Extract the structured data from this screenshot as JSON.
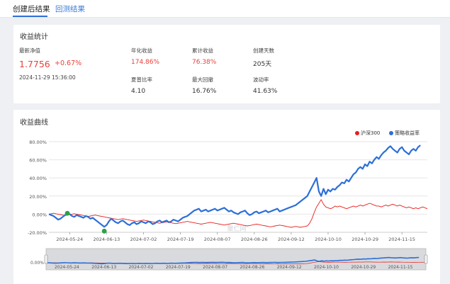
{
  "tabs": [
    {
      "label": "创建后结果",
      "active": true
    },
    {
      "label": "回测结果",
      "active": false
    }
  ],
  "stats": {
    "title": "收益统计",
    "nav_label": "最新净值",
    "nav_value": "1.7756",
    "nav_change": "+0.67%",
    "nav_time": "2024-11-29 15:36:00",
    "items": [
      {
        "label": "年化收益",
        "value": "174.86%",
        "color": "red"
      },
      {
        "label": "累计收益",
        "value": "76.38%",
        "color": "red"
      },
      {
        "label": "创建天数",
        "value": "205天",
        "color": "normal"
      },
      {
        "label": "夏普比率",
        "value": "4.10",
        "color": "normal"
      },
      {
        "label": "最大回撤",
        "value": "16.76%",
        "color": "normal"
      },
      {
        "label": "波动率",
        "value": "41.63%",
        "color": "normal"
      }
    ]
  },
  "chart_section_title": "收益曲线",
  "colors": {
    "benchmark": "#e8201c",
    "strategy": "#2c6fd8",
    "accent": "#2f6fd6",
    "marker": "#2ea043"
  },
  "chart_data": {
    "type": "line",
    "ylim": [
      -20,
      80
    ],
    "ytick_labels": [
      "80.00%",
      "60.00%",
      "40.00%",
      "20.00%",
      "0.00%",
      "-20.00%"
    ],
    "ytick_values": [
      80,
      60,
      40,
      20,
      0,
      -20
    ],
    "xtick_labels": [
      "2024-05-24",
      "2024-06-13",
      "2024-07-02",
      "2024-07-19",
      "2024-08-07",
      "2024-08-26",
      "2024-09-12",
      "2024-10-10",
      "2024-10-29",
      "2024-11-15"
    ],
    "xtick_index": [
      9,
      25,
      41,
      57,
      73,
      89,
      105,
      121,
      137,
      153
    ],
    "legend_position": "top-right",
    "series": [
      {
        "name": "沪深300",
        "color": "#e8201c",
        "values": [
          0,
          0.5,
          1,
          0.5,
          0,
          -0.5,
          -1,
          -1.5,
          -1,
          -0.5,
          0,
          0.5,
          0,
          -0.5,
          -1,
          -1.5,
          -2,
          -2.5,
          -2,
          -1.5,
          -1,
          -1.5,
          -2,
          -2.5,
          -3,
          -3.5,
          -4,
          -4.5,
          -5,
          -5.5,
          -6,
          -5.5,
          -5,
          -5.5,
          -6,
          -6.5,
          -7,
          -7.5,
          -8,
          -7.5,
          -7,
          -6.5,
          -7,
          -7.5,
          -8,
          -8.5,
          -9,
          -9.5,
          -10,
          -9.5,
          -9,
          -8.5,
          -9,
          -9.5,
          -10,
          -10.5,
          -10,
          -9.5,
          -9,
          -8.5,
          -8,
          -8.5,
          -9,
          -9.5,
          -10,
          -10.5,
          -11,
          -10.5,
          -10,
          -9.5,
          -9,
          -9.5,
          -10,
          -10.5,
          -11,
          -11.5,
          -12,
          -11.5,
          -11,
          -10.5,
          -10,
          -10.5,
          -11,
          -11.5,
          -12,
          -12.5,
          -13,
          -12.5,
          -12,
          -11.5,
          -11,
          -11.5,
          -12,
          -12.5,
          -13,
          -13.5,
          -14,
          -13.5,
          -13,
          -12.5,
          -12,
          -12.5,
          -13,
          -13.5,
          -14,
          -14.5,
          -14,
          -13.5,
          -14,
          -14.5,
          -14,
          -13.5,
          -13,
          -10,
          -5,
          2,
          8,
          12,
          16,
          11,
          8,
          7,
          6,
          7,
          9,
          8,
          9,
          8,
          7,
          6,
          7,
          8,
          9,
          8,
          9,
          10,
          9,
          10,
          11,
          12,
          11,
          10,
          9,
          9,
          8,
          9,
          10,
          9,
          10,
          11,
          10,
          9,
          10,
          9,
          8,
          7,
          8,
          7,
          6,
          7,
          6,
          7,
          8,
          7,
          6
        ],
        "y_unit": "%"
      },
      {
        "name": "策略收益率",
        "color": "#2c6fd8",
        "values": [
          0,
          -1,
          -2,
          -4,
          -6,
          -5,
          -3,
          -1,
          1,
          0,
          -2,
          -3,
          -1,
          -2,
          -3,
          -4,
          -2,
          -3,
          -5,
          -4,
          -6,
          -8,
          -10,
          -12,
          -14,
          -12,
          -8,
          -5,
          -7,
          -9,
          -10,
          -8,
          -7,
          -9,
          -11,
          -12,
          -10,
          -9,
          -11,
          -10,
          -8,
          -9,
          -10,
          -8,
          -9,
          -11,
          -10,
          -8,
          -7,
          -9,
          -8,
          -7,
          -9,
          -8,
          -6,
          -7,
          -8,
          -6,
          -4,
          -3,
          -2,
          0,
          2,
          4,
          5,
          6,
          3,
          4,
          5,
          3,
          4,
          5,
          6,
          4,
          5,
          6,
          7,
          5,
          3,
          4,
          2,
          1,
          0,
          2,
          3,
          4,
          1,
          -1,
          0,
          2,
          3,
          1,
          2,
          3,
          4,
          2,
          3,
          4,
          5,
          6,
          3,
          4,
          5,
          6,
          7,
          8,
          9,
          10,
          12,
          14,
          16,
          18,
          20,
          25,
          30,
          35,
          40,
          25,
          20,
          28,
          22,
          27,
          25,
          28,
          27,
          30,
          32,
          35,
          34,
          38,
          36,
          40,
          44,
          46,
          50,
          52,
          50,
          55,
          53,
          58,
          56,
          60,
          63,
          61,
          65,
          68,
          70,
          73,
          75,
          72,
          70,
          68,
          72,
          74,
          70,
          68,
          66,
          70,
          72,
          70,
          74,
          76
        ],
        "y_unit": "%"
      }
    ]
  },
  "watermark": "聚仁网"
}
